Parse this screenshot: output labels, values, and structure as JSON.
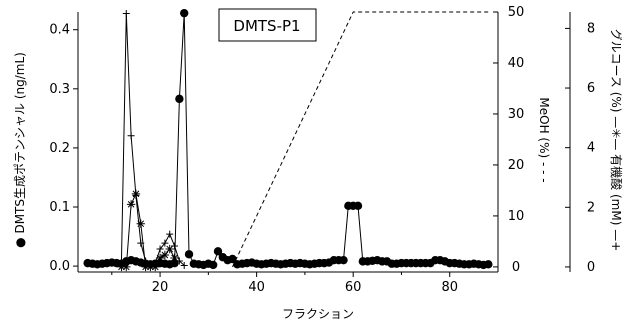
{
  "chart_data": {
    "type": "line",
    "annotation": "DMTS-P1",
    "xlabel": "フラクション",
    "x_axis": {
      "range": [
        3,
        90
      ],
      "ticks": [
        20,
        40,
        60,
        80
      ]
    },
    "y_axes": [
      {
        "id": "left",
        "label": "DMTS生成ポテンシャル (ng/mL)",
        "label_marker": "●",
        "range": [
          -0.01,
          0.43
        ],
        "ticks": [
          0.0,
          0.1,
          0.2,
          0.3,
          0.4
        ],
        "tick_labels": [
          "0.0",
          "0.1",
          "0.2",
          "0.3",
          "0.4"
        ]
      },
      {
        "id": "meoh",
        "label": "MeOH (%)",
        "label_marker": "- - -",
        "range": [
          -1,
          50
        ],
        "ticks": [
          0,
          10,
          20,
          30,
          40,
          50
        ],
        "tick_labels": [
          "0",
          "10",
          "20",
          "30",
          "40",
          "50"
        ]
      },
      {
        "id": "right",
        "label": "グルコース (%)",
        "label2": "有機酸 (mM)",
        "label_marker": "—",
        "marker2": "✳",
        "marker3": "+",
        "range": [
          -0.17,
          8.55
        ],
        "ticks": [
          0,
          2,
          4,
          6,
          8
        ],
        "tick_labels": [
          "0",
          "2",
          "4",
          "6",
          "8"
        ]
      }
    ],
    "series": [
      {
        "id": "dmts",
        "axis": "left",
        "marker": "circle",
        "style": "solid",
        "x": [
          5,
          6,
          7,
          8,
          9,
          10,
          11,
          12,
          13,
          14,
          15,
          16,
          17,
          18,
          19,
          20,
          21,
          22,
          23,
          24,
          25,
          26,
          27,
          28,
          29,
          30,
          31,
          32,
          33,
          34,
          35,
          36,
          37,
          38,
          39,
          40,
          41,
          42,
          43,
          44,
          45,
          46,
          47,
          48,
          49,
          50,
          51,
          52,
          53,
          54,
          55,
          56,
          57,
          58,
          59,
          60,
          61,
          62,
          63,
          64,
          65,
          66,
          67,
          68,
          69,
          70,
          71,
          72,
          73,
          74,
          75,
          76,
          77,
          78,
          79,
          80,
          81,
          82,
          83,
          84,
          85,
          86,
          87,
          88
        ],
        "y": [
          0.005,
          0.004,
          0.003,
          0.004,
          0.005,
          0.006,
          0.005,
          0.004,
          0.008,
          0.01,
          0.008,
          0.006,
          0.004,
          0.003,
          0.004,
          0.005,
          0.004,
          0.003,
          0.005,
          0.283,
          0.428,
          0.02,
          0.004,
          0.003,
          0.002,
          0.004,
          0.002,
          0.025,
          0.015,
          0.01,
          0.012,
          0.003,
          0.004,
          0.005,
          0.006,
          0.004,
          0.003,
          0.004,
          0.005,
          0.004,
          0.003,
          0.004,
          0.005,
          0.004,
          0.005,
          0.004,
          0.003,
          0.004,
          0.005,
          0.005,
          0.006,
          0.01,
          0.01,
          0.01,
          0.102,
          0.102,
          0.102,
          0.008,
          0.008,
          0.009,
          0.01,
          0.008,
          0.008,
          0.004,
          0.004,
          0.005,
          0.005,
          0.005,
          0.005,
          0.005,
          0.005,
          0.005,
          0.01,
          0.01,
          0.008,
          0.005,
          0.005,
          0.004,
          0.003,
          0.003,
          0.004,
          0.003,
          0.002,
          0.003
        ]
      },
      {
        "id": "glucose",
        "axis": "right",
        "marker": "asterisk",
        "style": "solid",
        "x": [
          12,
          13,
          14,
          15,
          16,
          17,
          18,
          19,
          20,
          21,
          22,
          23
        ],
        "y": [
          0.0,
          0.0,
          2.1,
          2.45,
          1.45,
          0.0,
          0.0,
          0.0,
          0.3,
          0.4,
          0.6,
          0.3
        ]
      },
      {
        "id": "organic_acid",
        "axis": "right",
        "marker": "plus",
        "style": "solid",
        "x": [
          12,
          13,
          14,
          15,
          16,
          17,
          18,
          19,
          20,
          21,
          22,
          23,
          24,
          25
        ],
        "y": [
          0.1,
          8.5,
          4.4,
          2.4,
          0.8,
          0.2,
          0.1,
          0.1,
          0.6,
          0.8,
          1.1,
          0.7,
          0.2,
          0.05
        ]
      },
      {
        "id": "meoh",
        "axis": "meoh",
        "marker": "none",
        "style": "dashed",
        "x": [
          35,
          60,
          88
        ],
        "y": [
          0,
          50,
          50
        ]
      }
    ]
  }
}
